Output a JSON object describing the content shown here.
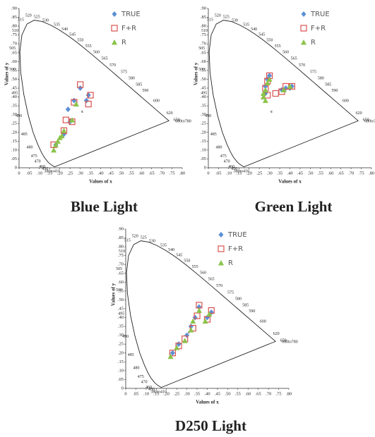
{
  "chart_data": [
    {
      "type": "scatter",
      "title": "Blue Light",
      "x_label": "Values of x",
      "y_label": "Values of y",
      "annotation": "c",
      "xlim": [
        0,
        0.8
      ],
      "ylim": [
        0,
        0.9
      ],
      "xticks": [
        0,
        {
          "value": 0.05,
          "label": ".05"
        },
        {
          "value": 0.1,
          "label": ".10"
        },
        {
          "value": 0.15,
          "label": ".15"
        },
        {
          "value": 0.2,
          "label": ".20"
        },
        {
          "value": 0.25,
          "label": ".25"
        },
        {
          "value": 0.3,
          "label": ".30"
        },
        {
          "value": 0.35,
          "label": ".35"
        },
        {
          "value": 0.4,
          "label": ".40"
        },
        {
          "value": 0.45,
          "label": ".45"
        },
        {
          "value": 0.5,
          "label": ".50"
        },
        {
          "value": 0.55,
          "label": ".55"
        },
        {
          "value": 0.6,
          "label": ".60"
        },
        {
          "value": 0.65,
          "label": ".65"
        },
        {
          "value": 0.7,
          "label": ".70"
        },
        {
          "value": 0.75,
          "label": ".75"
        },
        {
          "value": 0.8,
          "label": ".80"
        }
      ],
      "yticks": [
        0,
        {
          "value": 0.05,
          "label": ".05"
        },
        {
          "value": 0.1,
          "label": ".10"
        },
        {
          "value": 0.15,
          "label": ".15"
        },
        {
          "value": 0.2,
          "label": ".20"
        },
        {
          "value": 0.25,
          "label": ".25"
        },
        {
          "value": 0.3,
          "label": ".30"
        },
        {
          "value": 0.35,
          "label": ".35"
        },
        {
          "value": 0.4,
          "label": ".40"
        },
        {
          "value": 0.45,
          "label": ".45"
        },
        {
          "value": 0.5,
          "label": ".50"
        },
        {
          "value": 0.55,
          "label": ".55"
        },
        {
          "value": 0.6,
          "label": ".60"
        },
        {
          "value": 0.65,
          "label": ".65"
        },
        {
          "value": 0.7,
          "label": ".70"
        },
        {
          "value": 0.75,
          "label": ".75"
        },
        {
          "value": 0.8,
          "label": ".80"
        },
        {
          "value": 0.85,
          "label": ".85"
        },
        {
          "value": 0.9,
          "label": ".90"
        }
      ],
      "wavelength_labels": [
        "380to410",
        "450",
        "460",
        "470",
        "475",
        "480",
        "485",
        "490",
        "495",
        "500",
        "505",
        "510",
        "515",
        "520",
        "525",
        "530",
        "535",
        "540",
        "545",
        "550",
        "555",
        "560",
        "565",
        "570",
        "575",
        "580",
        "585",
        "590",
        "600",
        "620",
        "650",
        "680to780"
      ],
      "series": [
        {
          "name": "TRUE",
          "color": "#5b8fd6",
          "marker": "diamond",
          "x": [
            0.18,
            0.22,
            0.25,
            0.27,
            0.3,
            0.33,
            0.34,
            0.24
          ],
          "values": [
            0.13,
            0.19,
            0.26,
            0.38,
            0.45,
            0.38,
            0.41,
            0.33
          ]
        },
        {
          "name": "F+R",
          "color": "#d9534f",
          "marker": "square",
          "x": [
            0.17,
            0.22,
            0.23,
            0.26,
            0.27,
            0.3,
            0.34,
            0.35
          ],
          "values": [
            0.13,
            0.21,
            0.27,
            0.26,
            0.37,
            0.47,
            0.36,
            0.41
          ]
        },
        {
          "name": "R",
          "color": "#8bc34a",
          "marker": "triangle",
          "x": [
            0.17,
            0.18,
            0.19,
            0.21,
            0.2,
            0.22,
            0.26,
            0.28
          ],
          "values": [
            0.1,
            0.13,
            0.15,
            0.18,
            0.17,
            0.21,
            0.27,
            0.36
          ]
        }
      ]
    },
    {
      "type": "scatter",
      "title": "Green Light",
      "x_label": "Values of x",
      "y_label": "Values of y",
      "annotation": "c",
      "xlim": [
        0,
        0.8
      ],
      "ylim": [
        0,
        0.9
      ],
      "xticks": [
        0,
        {
          "value": 0.05,
          "label": ".05"
        },
        {
          "value": 0.1,
          "label": ".10"
        },
        {
          "value": 0.15,
          "label": ".15"
        },
        {
          "value": 0.2,
          "label": ".20"
        },
        {
          "value": 0.25,
          "label": ".25"
        },
        {
          "value": 0.3,
          "label": ".30"
        },
        {
          "value": 0.35,
          "label": ".35"
        },
        {
          "value": 0.4,
          "label": ".40"
        },
        {
          "value": 0.45,
          "label": ".45"
        },
        {
          "value": 0.5,
          "label": ".50"
        },
        {
          "value": 0.55,
          "label": ".55"
        },
        {
          "value": 0.6,
          "label": ".60"
        },
        {
          "value": 0.65,
          "label": ".65"
        },
        {
          "value": 0.7,
          "label": ".70"
        },
        {
          "value": 0.75,
          "label": ".75"
        },
        {
          "value": 0.8,
          "label": ".80"
        }
      ],
      "yticks": [
        0,
        {
          "value": 0.05,
          "label": ".05"
        },
        {
          "value": 0.1,
          "label": ".10"
        },
        {
          "value": 0.15,
          "label": ".15"
        },
        {
          "value": 0.2,
          "label": ".20"
        },
        {
          "value": 0.25,
          "label": ".25"
        },
        {
          "value": 0.3,
          "label": ".30"
        },
        {
          "value": 0.35,
          "label": ".35"
        },
        {
          "value": 0.4,
          "label": ".40"
        },
        {
          "value": 0.45,
          "label": ".45"
        },
        {
          "value": 0.5,
          "label": ".50"
        },
        {
          "value": 0.55,
          "label": ".55"
        },
        {
          "value": 0.6,
          "label": ".60"
        },
        {
          "value": 0.65,
          "label": ".65"
        },
        {
          "value": 0.7,
          "label": ".70"
        },
        {
          "value": 0.75,
          "label": ".75"
        },
        {
          "value": 0.8,
          "label": ".80"
        },
        {
          "value": 0.85,
          "label": ".85"
        },
        {
          "value": 0.9,
          "label": ".90"
        }
      ],
      "wavelength_labels": [
        "380to410",
        "450",
        "460",
        "470",
        "475",
        "480",
        "485",
        "490",
        "495",
        "500",
        "505",
        "510",
        "515",
        "520",
        "525",
        "530",
        "535",
        "540",
        "545",
        "550",
        "555",
        "560",
        "565",
        "570",
        "575",
        "580",
        "585",
        "590",
        "600",
        "620",
        "650",
        "680to780"
      ],
      "series": [
        {
          "name": "TRUE",
          "color": "#5b8fd6",
          "marker": "diamond",
          "x": [
            0.29,
            0.28,
            0.28,
            0.36,
            0.38,
            0.41,
            0.4,
            0.3
          ],
          "values": [
            0.5,
            0.46,
            0.42,
            0.44,
            0.45,
            0.46,
            0.45,
            0.52
          ]
        },
        {
          "name": "F+R",
          "color": "#d9534f",
          "marker": "square",
          "x": [
            0.29,
            0.28,
            0.29,
            0.33,
            0.36,
            0.38,
            0.41,
            0.3
          ],
          "values": [
            0.49,
            0.45,
            0.41,
            0.42,
            0.43,
            0.46,
            0.46,
            0.52
          ]
        },
        {
          "name": "R",
          "color": "#8bc34a",
          "marker": "triangle",
          "x": [
            0.28,
            0.27,
            0.28,
            0.29,
            0.37,
            0.4,
            0.27,
            0.3
          ],
          "values": [
            0.44,
            0.4,
            0.38,
            0.48,
            0.44,
            0.46,
            0.42,
            0.5
          ]
        }
      ]
    },
    {
      "type": "scatter",
      "title": "D250 Light",
      "x_label": "Values of x",
      "y_label": "Values of y",
      "annotation": "c",
      "xlim": [
        0,
        0.8
      ],
      "ylim": [
        0,
        0.9
      ],
      "xticks": [
        0,
        {
          "value": 0.05,
          "label": ".05"
        },
        {
          "value": 0.1,
          "label": ".10"
        },
        {
          "value": 0.15,
          "label": ".15"
        },
        {
          "value": 0.2,
          "label": ".20"
        },
        {
          "value": 0.25,
          "label": ".25"
        },
        {
          "value": 0.3,
          "label": ".30"
        },
        {
          "value": 0.35,
          "label": ".35"
        },
        {
          "value": 0.4,
          "label": ".40"
        },
        {
          "value": 0.45,
          "label": ".45"
        },
        {
          "value": 0.5,
          "label": ".50"
        },
        {
          "value": 0.55,
          "label": ".55"
        },
        {
          "value": 0.6,
          "label": ".60"
        },
        {
          "value": 0.65,
          "label": ".65"
        },
        {
          "value": 0.7,
          "label": ".70"
        },
        {
          "value": 0.75,
          "label": ".75"
        },
        {
          "value": 0.8,
          "label": ".80"
        }
      ],
      "yticks": [
        0,
        {
          "value": 0.05,
          "label": ".05"
        },
        {
          "value": 0.1,
          "label": ".10"
        },
        {
          "value": 0.15,
          "label": ".15"
        },
        {
          "value": 0.2,
          "label": ".20"
        },
        {
          "value": 0.25,
          "label": ".25"
        },
        {
          "value": 0.3,
          "label": ".30"
        },
        {
          "value": 0.35,
          "label": ".35"
        },
        {
          "value": 0.4,
          "label": ".40"
        },
        {
          "value": 0.45,
          "label": ".45"
        },
        {
          "value": 0.5,
          "label": ".50"
        },
        {
          "value": 0.55,
          "label": ".55"
        },
        {
          "value": 0.6,
          "label": ".60"
        },
        {
          "value": 0.65,
          "label": ".65"
        },
        {
          "value": 0.7,
          "label": ".70"
        },
        {
          "value": 0.75,
          "label": ".75"
        },
        {
          "value": 0.8,
          "label": ".80"
        },
        {
          "value": 0.85,
          "label": ".85"
        },
        {
          "value": 0.9,
          "label": ".90"
        }
      ],
      "wavelength_labels": [
        "380to410",
        "450",
        "460",
        "470",
        "475",
        "480",
        "485",
        "490",
        "495",
        "500",
        "505",
        "510",
        "515",
        "520",
        "525",
        "530",
        "535",
        "540",
        "545",
        "550",
        "555",
        "560",
        "565",
        "570",
        "575",
        "580",
        "585",
        "590",
        "600",
        "620",
        "650",
        "680to780"
      ],
      "series": [
        {
          "name": "TRUE",
          "color": "#5b8fd6",
          "marker": "diamond",
          "x": [
            0.23,
            0.26,
            0.3,
            0.32,
            0.34,
            0.36,
            0.4,
            0.42
          ],
          "values": [
            0.2,
            0.25,
            0.3,
            0.35,
            0.4,
            0.46,
            0.4,
            0.43
          ]
        },
        {
          "name": "F+R",
          "color": "#d9534f",
          "marker": "square",
          "x": [
            0.23,
            0.26,
            0.29,
            0.33,
            0.35,
            0.36,
            0.4,
            0.42
          ],
          "values": [
            0.2,
            0.24,
            0.28,
            0.34,
            0.41,
            0.47,
            0.39,
            0.44
          ]
        },
        {
          "name": "R",
          "color": "#8bc34a",
          "marker": "triangle",
          "x": [
            0.22,
            0.25,
            0.29,
            0.32,
            0.33,
            0.36,
            0.39,
            0.41
          ],
          "values": [
            0.18,
            0.23,
            0.27,
            0.33,
            0.38,
            0.44,
            0.38,
            0.42
          ]
        }
      ]
    }
  ]
}
